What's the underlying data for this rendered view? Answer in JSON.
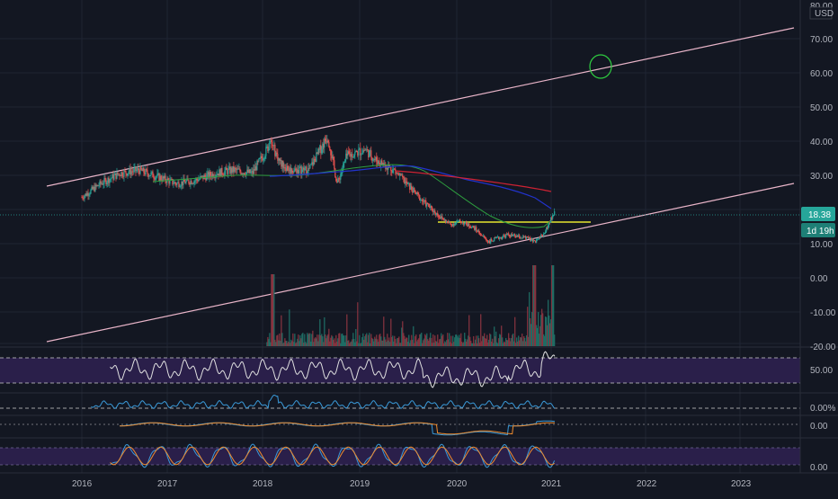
{
  "colors": {
    "background": "#131722",
    "grid": "#1f2433",
    "axis_text": "#b2b5be",
    "up": "#26a69a",
    "down": "#ef5350",
    "channel": "#e8b4c8",
    "ma_short": "#2e9e3f",
    "ma_mid": "#2233cc",
    "ma_long": "#cc2233",
    "support": "#e6e62e",
    "target_circle": "#2ecc40",
    "rsi": "#e0e0e0",
    "rsi_band": "#2a1f4a",
    "adx": "#3a9ad9",
    "macd": "#3a9ad9",
    "signal": "#f08c2e",
    "stoch_k": "#3a9ad9",
    "stoch_d": "#f08c2e",
    "price_tag": "#26a69a"
  },
  "price_axis": {
    "currency": "USD",
    "ticks": [
      "80.00",
      "70.00",
      "60.00",
      "50.00",
      "40.00",
      "30.00",
      "20.00",
      "10.00",
      "0.00",
      "-10.00",
      "-20.00"
    ],
    "current_price": "18.38",
    "countdown": "1d 19h"
  },
  "time_axis": {
    "ticks": [
      "2016",
      "2017",
      "2018",
      "2019",
      "2020",
      "2021",
      "2022",
      "2023"
    ]
  },
  "indicators": {
    "rsi": {
      "level_label": "50.00"
    },
    "adx": {
      "level_label": "0.00%"
    },
    "macd": {
      "level_label": "0.00"
    },
    "stoch": {
      "level_label": "0.00"
    }
  },
  "chart_data": {
    "type": "line",
    "series": [
      {
        "values_x": [
          2016.0,
          2016.2,
          2016.4,
          2016.6,
          2016.8,
          2017.0,
          2017.2,
          2017.4,
          2017.6,
          2017.8,
          2018.0,
          2018.1,
          2018.2,
          2018.4,
          2018.6,
          2018.7,
          2018.8,
          2019.0,
          2019.1,
          2019.3,
          2019.5,
          2019.6,
          2019.8,
          2019.9,
          2020.0,
          2020.15,
          2020.3,
          2020.5,
          2020.7,
          2020.8,
          2020.9,
          2021.0
        ],
        "values_y": [
          23,
          27,
          30,
          31,
          29,
          27,
          28,
          30,
          31,
          30,
          39,
          33,
          31,
          31,
          41,
          27,
          35,
          37,
          34,
          31,
          25,
          22,
          17,
          15,
          16,
          14,
          10,
          12,
          11,
          10,
          13,
          19
        ]
      }
    ]
  }
}
